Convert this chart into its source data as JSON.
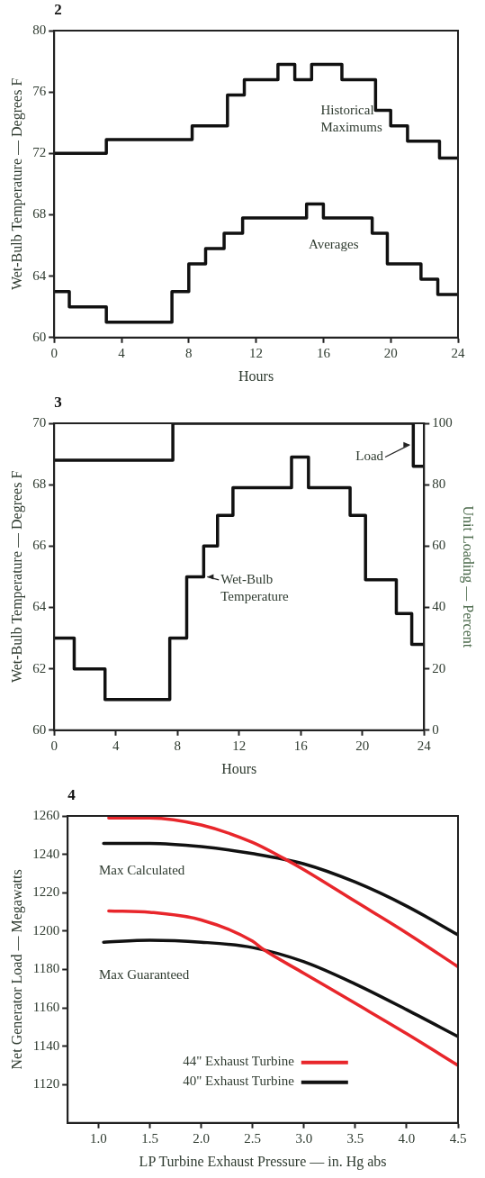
{
  "chart_data": [
    {
      "type": "step",
      "title": "2",
      "xlabel": "Hours",
      "ylabel": "Wet-Bulb Temperature — Degrees F",
      "xlim": [
        0,
        24
      ],
      "xticks": [
        0,
        4,
        8,
        12,
        16,
        20,
        24
      ],
      "ylim": [
        60,
        80
      ],
      "yticks": [
        60,
        64,
        68,
        72,
        76,
        80
      ],
      "series": [
        {
          "name": "Historical Maximums",
          "color": "#111111",
          "x": [
            0,
            3.1,
            8.2,
            10.3,
            11.3,
            13.3,
            14.3,
            15.3,
            17.1,
            19.1,
            20.0,
            21.0,
            22.9,
            24
          ],
          "values": [
            72,
            72.9,
            73.8,
            75.8,
            76.8,
            77.8,
            76.8,
            77.8,
            76.8,
            74.8,
            73.8,
            72.8,
            71.7,
            71.7
          ]
        },
        {
          "name": "Averages",
          "color": "#111111",
          "x": [
            0,
            0.9,
            3.1,
            7.0,
            8.0,
            9.0,
            10.1,
            11.2,
            15.0,
            16.0,
            18.9,
            19.8,
            21.8,
            22.8,
            24
          ],
          "values": [
            63,
            62,
            61,
            63,
            64.8,
            65.8,
            66.8,
            67.8,
            68.7,
            67.8,
            66.8,
            64.8,
            63.8,
            62.8,
            62.8
          ]
        }
      ]
    },
    {
      "type": "step",
      "title": "3",
      "xlabel": "Hours",
      "ylabel": "Wet-Bulb Temperature — Degrees F",
      "y2label": "Unit Loading — Percent",
      "xlim": [
        0,
        24
      ],
      "xticks": [
        0,
        4,
        8,
        12,
        16,
        20,
        24
      ],
      "ylim": [
        60,
        70
      ],
      "yticks": [
        60,
        62,
        64,
        66,
        68,
        70
      ],
      "y2lim": [
        0,
        100
      ],
      "y2ticks": [
        0,
        20,
        40,
        60,
        80,
        100
      ],
      "series": [
        {
          "name": "Wet-Bulb Temperature",
          "color": "#111111",
          "x": [
            0,
            1.3,
            3.3,
            7.5,
            8.6,
            9.7,
            10.6,
            11.6,
            15.4,
            16.5,
            19.2,
            20.2,
            22.2,
            23.2,
            24
          ],
          "values": [
            63,
            62,
            61,
            63,
            65,
            66,
            67,
            67.9,
            68.9,
            67.9,
            67,
            64.9,
            63.8,
            62.8,
            62.8
          ]
        },
        {
          "name": "Load",
          "color": "#111111",
          "axis": "y2",
          "x": [
            0,
            7.7,
            23.3,
            24
          ],
          "values": [
            88,
            100,
            86,
            86
          ]
        }
      ]
    },
    {
      "type": "line",
      "title": "4",
      "xlabel": "LP Turbine Exhaust Pressure — in. Hg abs",
      "ylabel": "Net Generator Load — Megawatts",
      "xlim": [
        0.7,
        4.5
      ],
      "xticks": [
        {
          "value": 1,
          "label": "1.0"
        },
        1.5,
        {
          "value": 2,
          "label": "2.0"
        },
        2.5,
        {
          "value": 3,
          "label": "3.0"
        },
        3.5,
        {
          "value": 4,
          "label": "4.0"
        },
        4.5
      ],
      "ylim": [
        1100,
        1260
      ],
      "yticks": [
        1120,
        1140,
        1160,
        1180,
        1200,
        1220,
        1240,
        1260
      ],
      "legend": "bottom",
      "annotations": [
        "Max Calculated",
        "Max Guaranteed"
      ],
      "series": [
        {
          "name": "44\" Exhaust Turbine",
          "color": "#e8262b",
          "x": [
            1.1,
            1.5,
            2.0,
            2.5,
            2.8,
            3.0,
            3.5,
            4.0,
            4.5
          ],
          "values": [
            1259,
            1259,
            1255.3,
            1246.2,
            1238,
            1232,
            1215.5,
            1199,
            1181.4
          ]
        },
        {
          "name": "40\" Exhaust Turbine",
          "color": "#111111",
          "x": [
            1.05,
            1.5,
            2.0,
            2.5,
            3.0,
            3.5,
            4.0,
            4.5
          ],
          "values": [
            1245.7,
            1245.7,
            1244,
            1240.4,
            1235,
            1225.5,
            1213,
            1198
          ]
        },
        {
          "color": "#e8262b",
          "x": [
            1.1,
            1.5,
            2.0,
            2.5,
            2.6,
            3.0,
            3.5,
            4.0,
            4.5
          ],
          "values": [
            1210.5,
            1209.8,
            1205.8,
            1194.7,
            1190.6,
            1178,
            1162.3,
            1146.5,
            1130
          ]
        },
        {
          "color": "#111111",
          "x": [
            1.05,
            1.5,
            2.0,
            2.5,
            3.0,
            3.5,
            4.0,
            4.5
          ],
          "values": [
            1194.2,
            1195.2,
            1194.2,
            1191.4,
            1184,
            1172.4,
            1159,
            1145
          ]
        }
      ]
    }
  ]
}
